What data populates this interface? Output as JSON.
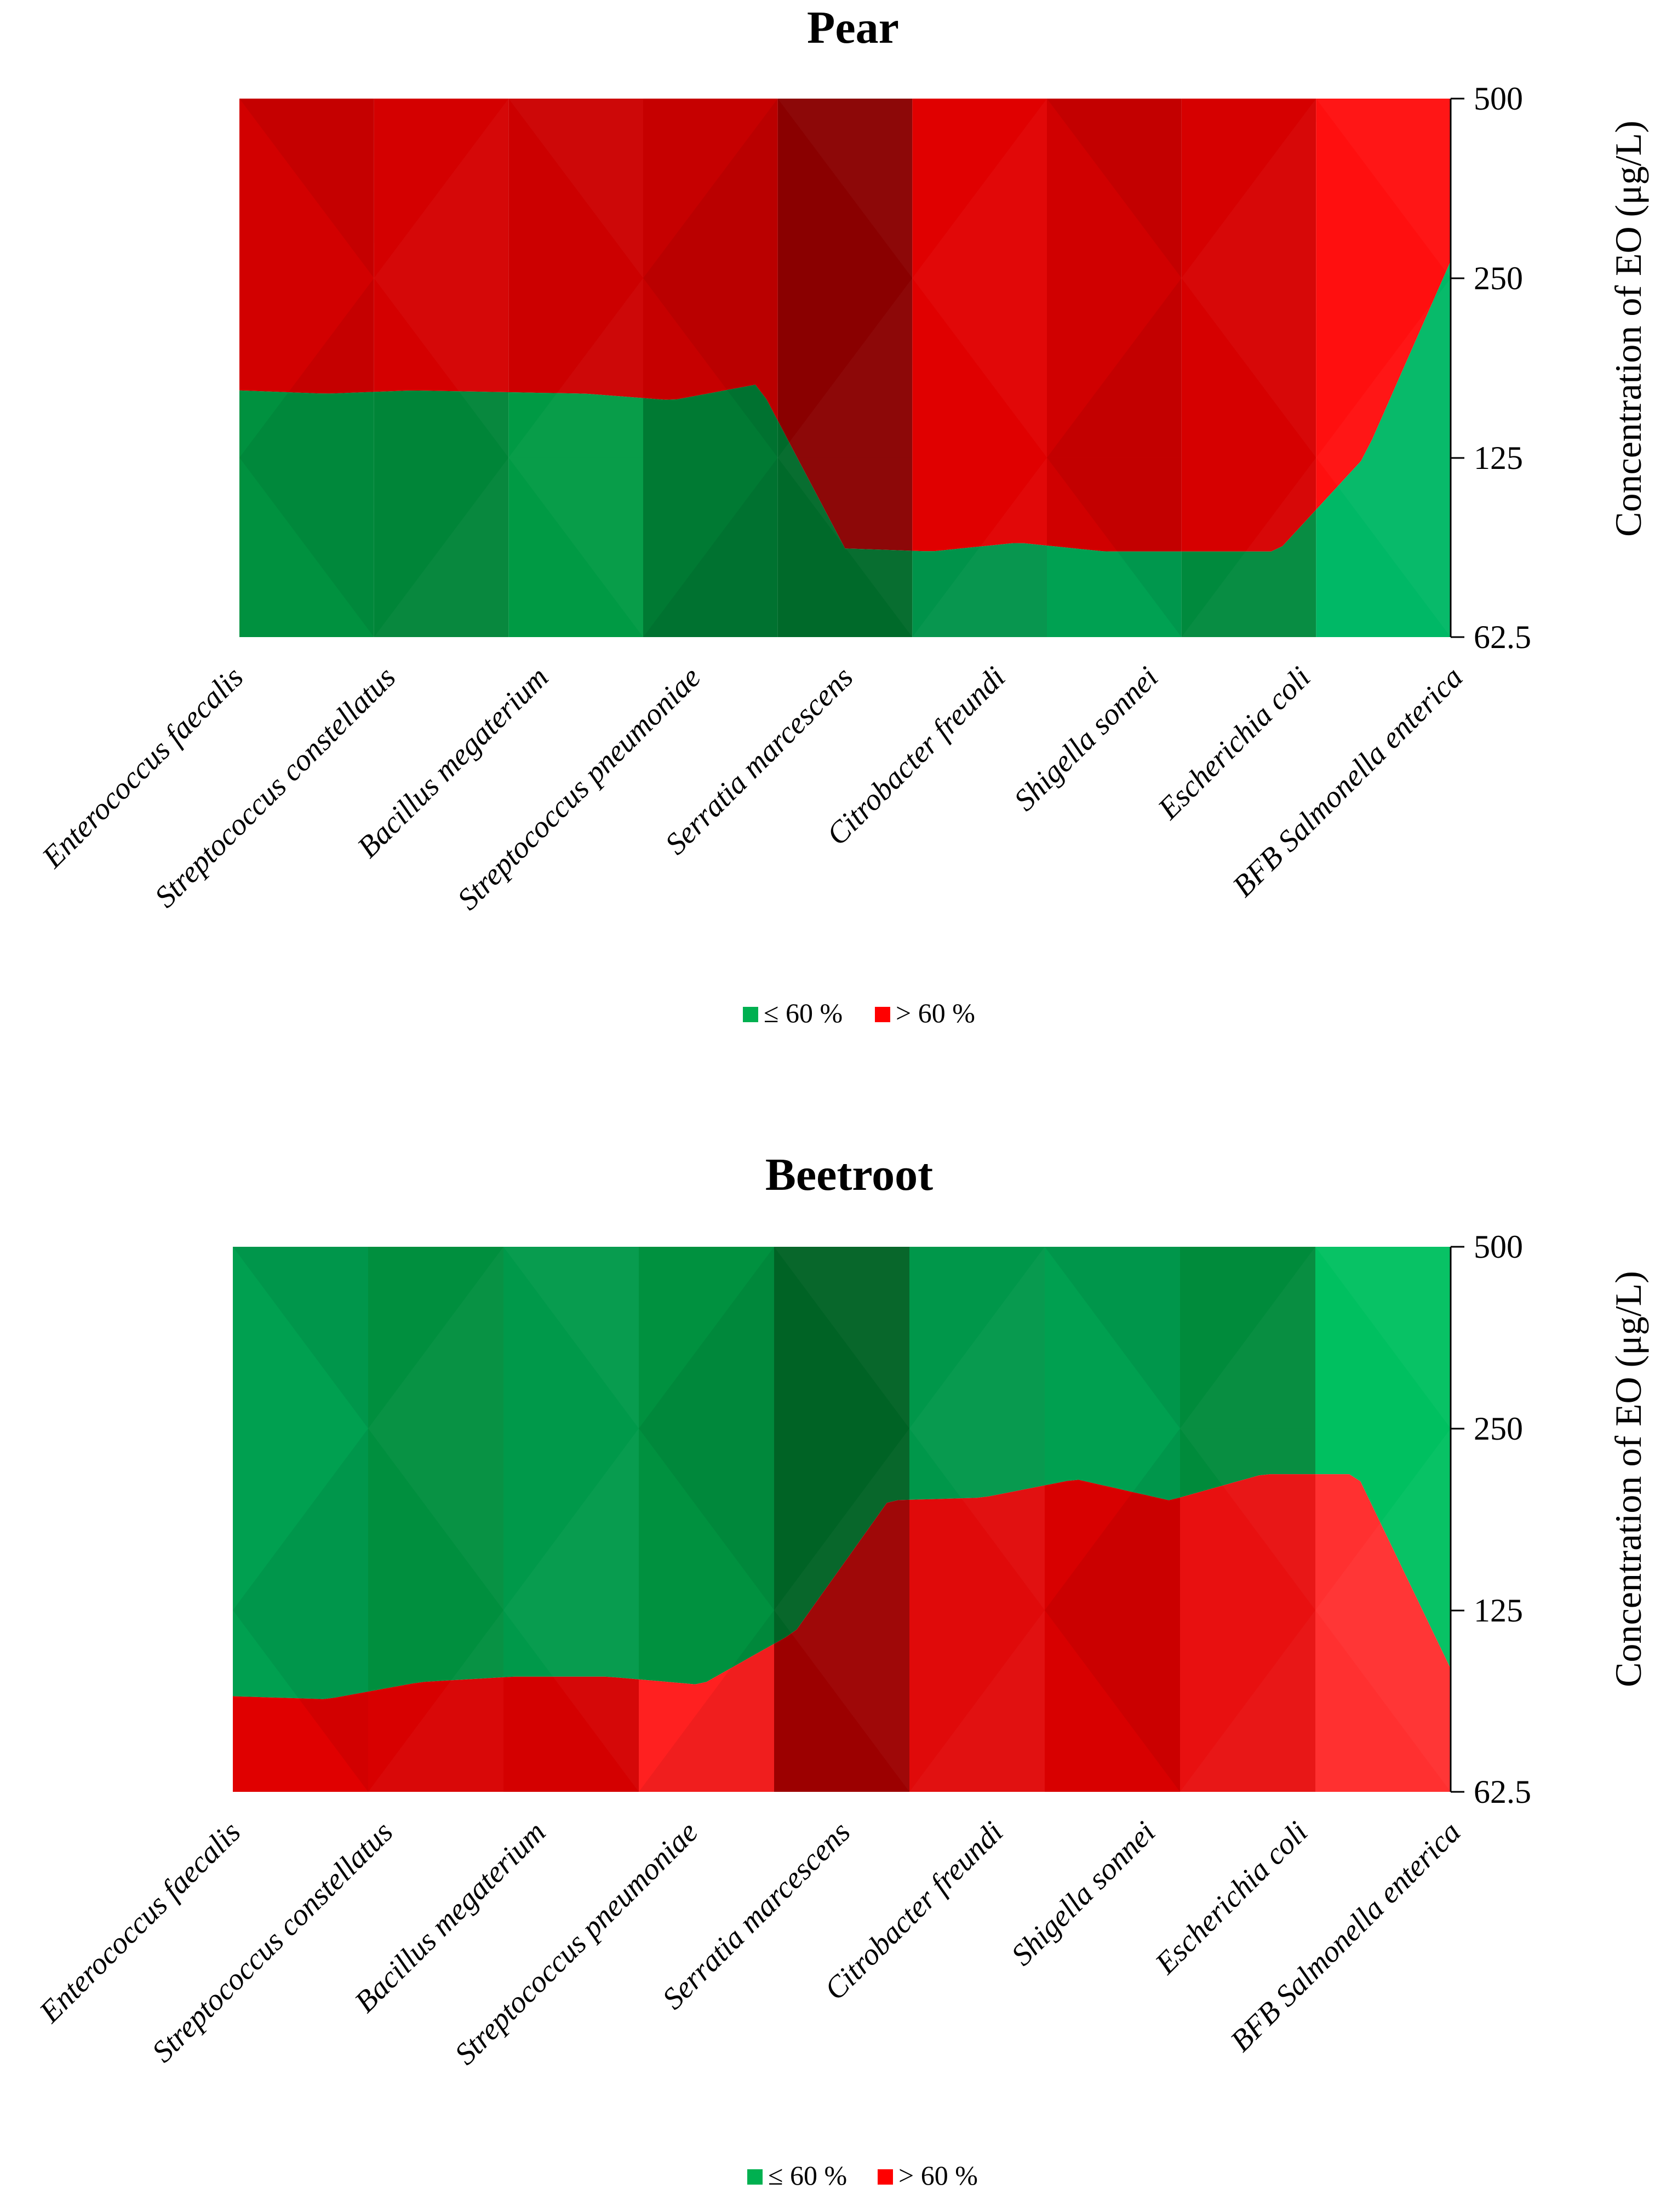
{
  "chart_data": [
    {
      "type": "heatmap",
      "title": "Pear",
      "ylabel": "Concentration of EO (μg/L)",
      "yticks": [
        "500",
        "250",
        "125",
        "62.5"
      ],
      "categories": [
        "Enterococcus faecalis",
        "Streptococcus constellatus",
        "Bacillus megaterium",
        "Streptococcus pneumoniae",
        "Serratia marcescens",
        "Citrobacter freundi",
        "Shigella sonnei",
        "Escherichia coli",
        "BFB Salmonella enterica"
      ],
      "boundary_concentration": [
        162,
        160,
        162,
        161,
        160,
        156,
        166,
        88,
        87,
        90,
        87,
        87,
        87,
        125,
        267
      ],
      "series": [
        {
          "name": "≤ 60 %",
          "color": "#00b050"
        },
        {
          "name": "> 60 %",
          "color": "#ff0000"
        }
      ],
      "legend": {
        "position": "bottom-center",
        "items": [
          "≤ 60 %",
          "> 60 %"
        ]
      }
    },
    {
      "type": "heatmap",
      "title": "Beetroot",
      "ylabel": "Concentration of EO (μg/L)",
      "yticks": [
        "500",
        "250",
        "125",
        "62.5"
      ],
      "categories": [
        "Enterococcus faecalis",
        "Streptococcus constellatus",
        "Bacillus megaterium",
        "Streptococcus pneumoniae",
        "Serratia marcescens",
        "Citrobacter freundi",
        "Shigella sonnei",
        "Escherichia coli",
        "BFB Salmonella enterica"
      ],
      "boundary_concentration": [
        90,
        89,
        95,
        97,
        97,
        94,
        115,
        190,
        192,
        206,
        190,
        210,
        210,
        100
      ],
      "series": [
        {
          "name": "≤ 60 %",
          "color": "#00b050"
        },
        {
          "name": "> 60 %",
          "color": "#ff0000"
        }
      ],
      "legend": {
        "position": "bottom-center",
        "items": [
          "≤ 60 %",
          "> 60 %"
        ]
      }
    }
  ]
}
